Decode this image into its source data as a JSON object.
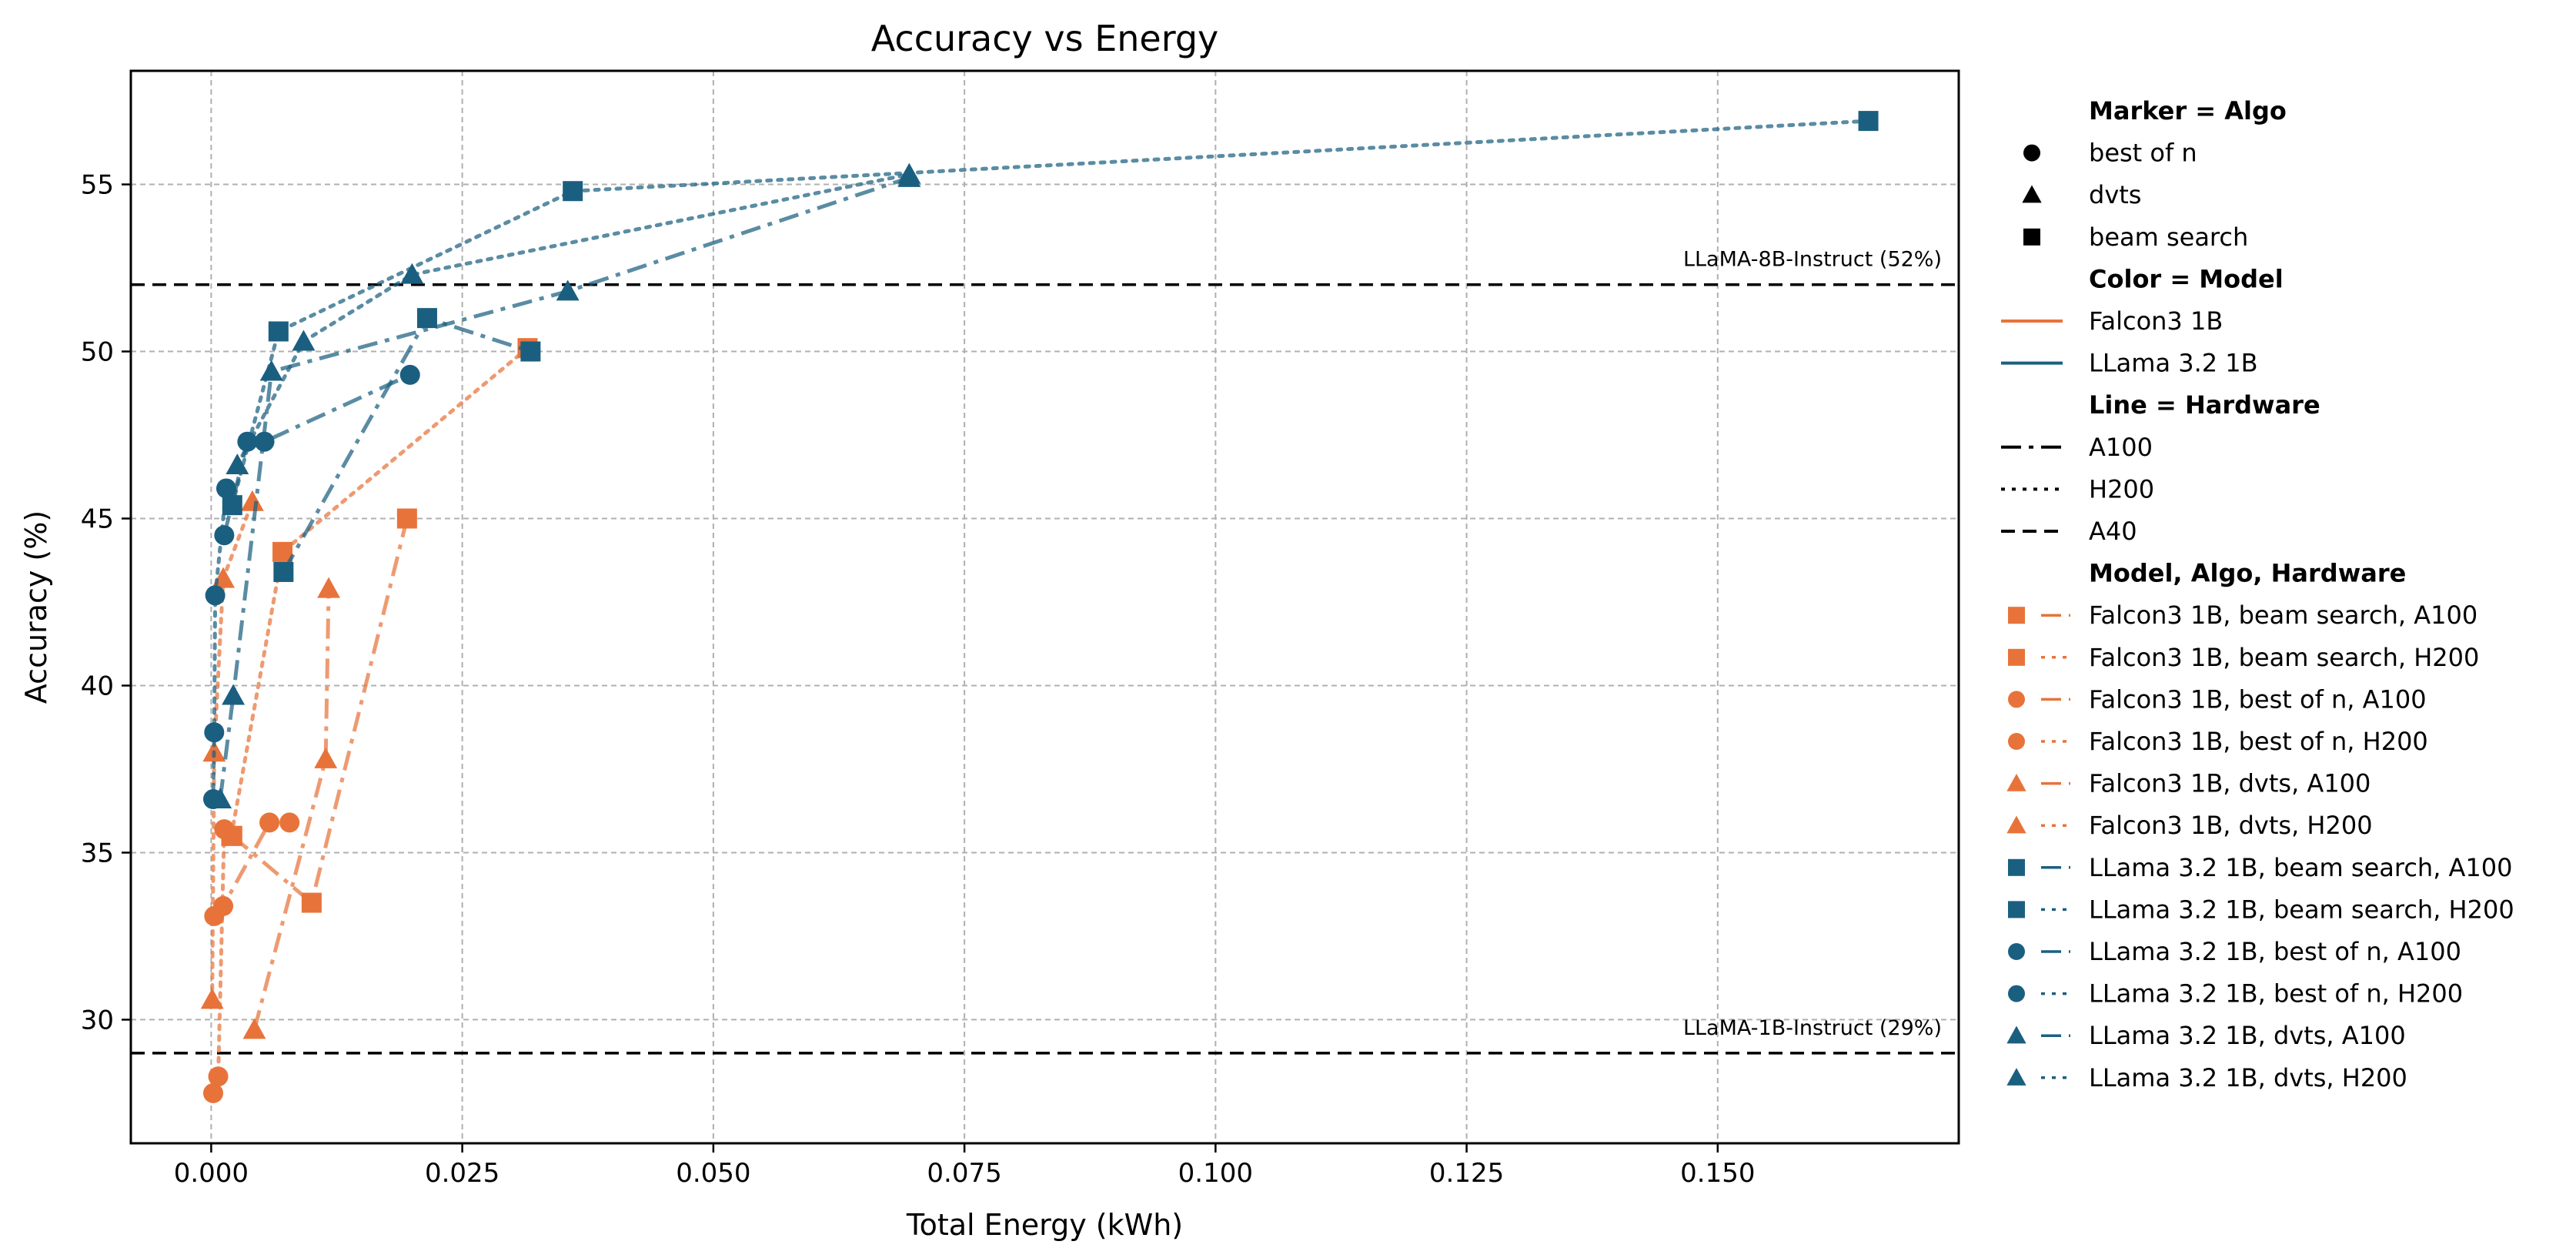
{
  "chart_data": {
    "type": "line",
    "title": "Accuracy vs Energy",
    "xlabel": "Total Energy (kWh)",
    "ylabel": "Accuracy (%)",
    "xlim": [
      -0.008,
      0.174
    ],
    "ylim": [
      26.3,
      58.4
    ],
    "xticks": [
      0.0,
      0.025,
      0.05,
      0.075,
      0.1,
      0.125,
      0.15
    ],
    "xtick_labels": [
      "0.000",
      "0.025",
      "0.050",
      "0.075",
      "0.100",
      "0.125",
      "0.150"
    ],
    "yticks": [
      30,
      35,
      40,
      45,
      50,
      55
    ],
    "ytick_labels": [
      "30",
      "35",
      "40",
      "45",
      "50",
      "55"
    ],
    "grid": true,
    "colors": {
      "Falcon3 1B": "#e8733a",
      "LLama 3.2 1B": "#1b5f80"
    },
    "reference_lines": [
      {
        "y": 52,
        "label": "LLaMA-8B-Instruct (52%)",
        "style": "dashed"
      },
      {
        "y": 29,
        "label": "LLaMA-1B-Instruct (29%)",
        "style": "dashed"
      }
    ],
    "series": [
      {
        "name": "Falcon3 1B, beam search, A100",
        "model": "Falcon3 1B",
        "marker": "square",
        "line": "dashdot",
        "x": [
          0.0021,
          0.01,
          0.0195
        ],
        "y": [
          35.5,
          33.5,
          45.0
        ]
      },
      {
        "name": "Falcon3 1B, beam search, H200",
        "model": "Falcon3 1B",
        "marker": "square",
        "line": "dotted",
        "x": [
          0.002,
          0.0071,
          0.0315
        ],
        "y": [
          35.5,
          44.0,
          50.1
        ]
      },
      {
        "name": "Falcon3 1B, best of n, A100",
        "model": "Falcon3 1B",
        "marker": "circle",
        "line": "dashdot",
        "x": [
          0.0003,
          0.0012,
          0.0058,
          0.0078
        ],
        "y": [
          33.1,
          33.4,
          35.9,
          35.9
        ]
      },
      {
        "name": "Falcon3 1B, best of n, H200",
        "model": "Falcon3 1B",
        "marker": "circle",
        "line": "dotted",
        "x": [
          0.0002,
          0.0007,
          0.0013
        ],
        "y": [
          27.8,
          28.3,
          35.7
        ]
      },
      {
        "name": "Falcon3 1B, dvts, A100",
        "model": "Falcon3 1B",
        "marker": "triangle",
        "line": "dashdot",
        "x": [
          0.0043,
          0.0114,
          0.0117
        ],
        "y": [
          29.7,
          37.8,
          42.9
        ]
      },
      {
        "name": "Falcon3 1B, dvts, H200",
        "model": "Falcon3 1B",
        "marker": "triangle",
        "line": "dotted",
        "x": [
          0.0001,
          0.0003,
          0.0012,
          0.0041
        ],
        "y": [
          30.6,
          38.0,
          43.2,
          45.5
        ]
      },
      {
        "name": "LLama 3.2 1B, beam search, A100",
        "model": "LLama 3.2 1B",
        "marker": "square",
        "line": "dashdot",
        "x": [
          0.0072,
          0.0215,
          0.0318
        ],
        "y": [
          43.4,
          51.0,
          50.0
        ]
      },
      {
        "name": "LLama 3.2 1B, beam search, H200",
        "model": "LLama 3.2 1B",
        "marker": "square",
        "line": "dotted",
        "x": [
          0.0021,
          0.0067,
          0.036,
          0.165
        ],
        "y": [
          45.4,
          50.6,
          54.8,
          56.9
        ]
      },
      {
        "name": "LLama 3.2 1B, best of n, A100",
        "model": "LLama 3.2 1B",
        "marker": "circle",
        "line": "dashdot",
        "x": [
          0.0013,
          0.0036,
          0.0053,
          0.0198
        ],
        "y": [
          44.5,
          47.3,
          47.3,
          49.3
        ]
      },
      {
        "name": "LLama 3.2 1B, best of n, H200",
        "model": "LLama 3.2 1B",
        "marker": "circle",
        "line": "dotted",
        "x": [
          0.0002,
          0.0003,
          0.0004,
          0.0015
        ],
        "y": [
          36.6,
          38.6,
          42.7,
          45.9
        ]
      },
      {
        "name": "LLama 3.2 1B, dvts, A100",
        "model": "LLama 3.2 1B",
        "marker": "triangle",
        "line": "dashdot",
        "x": [
          0.0009,
          0.0022,
          0.006,
          0.0355,
          0.0695
        ],
        "y": [
          36.6,
          39.7,
          49.4,
          51.8,
          55.2
        ]
      },
      {
        "name": "LLama 3.2 1B, dvts, H200",
        "model": "LLama 3.2 1B",
        "marker": "triangle",
        "line": "dotted",
        "x": [
          0.0026,
          0.0092,
          0.02,
          0.0695
        ],
        "y": [
          46.6,
          50.3,
          52.3,
          55.3
        ]
      }
    ],
    "legend": {
      "placement": "outside-right",
      "groups": [
        {
          "title": "Marker = Algo",
          "items": [
            {
              "label": "best of n",
              "marker": "circle"
            },
            {
              "label": "dvts",
              "marker": "triangle"
            },
            {
              "label": "beam search",
              "marker": "square"
            }
          ]
        },
        {
          "title": "Color = Model",
          "items": [
            {
              "label": "Falcon3 1B",
              "color": "#e8733a"
            },
            {
              "label": "LLama 3.2 1B",
              "color": "#1b5f80"
            }
          ]
        },
        {
          "title": "Line = Hardware",
          "items": [
            {
              "label": "A100",
              "line": "dashdot"
            },
            {
              "label": "H200",
              "line": "dotted"
            },
            {
              "label": "A40",
              "line": "dashed"
            }
          ]
        },
        {
          "title": "Model, Algo, Hardware",
          "items": "series"
        }
      ]
    }
  }
}
